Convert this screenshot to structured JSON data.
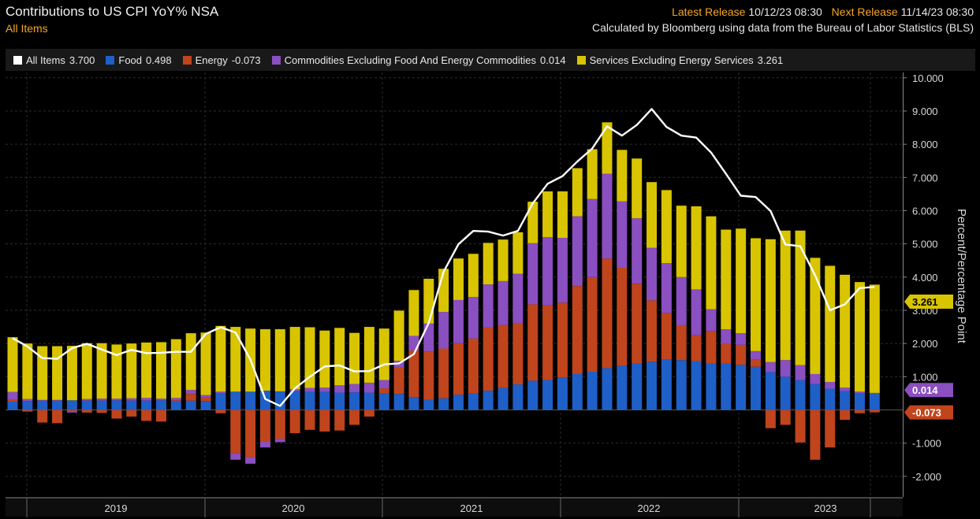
{
  "header": {
    "title": "Contributions to US CPI YoY% NSA",
    "subtitle": "All Items",
    "latest_release_label": "Latest Release",
    "latest_release_value": "10/12/23 08:30",
    "next_release_label": "Next Release",
    "next_release_value": "11/14/23 08:30",
    "source_note": "Calculated by Bloomberg using data from the Bureau of Labor Statistics (BLS)"
  },
  "legend": [
    {
      "label": "All Items",
      "value": "3.700",
      "color": "#ffffff"
    },
    {
      "label": "Food",
      "value": "0.498",
      "color": "#1f5fc8"
    },
    {
      "label": "Energy",
      "value": "-0.073",
      "color": "#c0441c"
    },
    {
      "label": "Commodities Excluding Food And Energy Commodities",
      "value": "0.014",
      "color": "#8a4fc0"
    },
    {
      "label": "Services Excluding Energy Services",
      "value": "3.261",
      "color": "#d9c400"
    }
  ],
  "chart_data": {
    "type": "bar",
    "stacked": true,
    "y_axis_title": "Percent/Percentage Point",
    "ylim": [
      -2.6,
      10.35
    ],
    "y_ticks": [
      "10.000",
      "9.000",
      "8.000",
      "7.000",
      "6.000",
      "5.000",
      "4.000",
      "3.000",
      "2.000",
      "1.000",
      "-1.000",
      "-2.000"
    ],
    "x_tick_labels": [
      "2019",
      "2020",
      "2021",
      "2022",
      "2023"
    ],
    "start_month": "2019-01",
    "end_month": "2023-09",
    "series": [
      {
        "name": "Food",
        "color": "#1f5fc8",
        "values": [
          0.25,
          0.27,
          0.28,
          0.28,
          0.29,
          0.28,
          0.28,
          0.29,
          0.28,
          0.28,
          0.29,
          0.26,
          0.28,
          0.27,
          0.5,
          0.55,
          0.55,
          0.58,
          0.56,
          0.57,
          0.54,
          0.54,
          0.52,
          0.53,
          0.52,
          0.5,
          0.48,
          0.39,
          0.3,
          0.35,
          0.46,
          0.5,
          0.58,
          0.66,
          0.77,
          0.88,
          0.9,
          0.98,
          1.08,
          1.15,
          1.26,
          1.33,
          1.4,
          1.45,
          1.52,
          1.5,
          1.47,
          1.4,
          1.39,
          1.36,
          1.3,
          1.14,
          1.0,
          0.9,
          0.78,
          0.64,
          0.57,
          0.5,
          0.498
        ]
      },
      {
        "name": "Energy",
        "color": "#c0441c",
        "values": [
          0.06,
          -0.05,
          -0.38,
          -0.4,
          -0.05,
          -0.08,
          -0.09,
          -0.26,
          -0.2,
          -0.33,
          -0.35,
          0.03,
          0.2,
          0.1,
          -0.1,
          -1.3,
          -1.42,
          -0.95,
          -0.87,
          -0.7,
          -0.6,
          -0.65,
          -0.62,
          -0.45,
          -0.2,
          0.15,
          0.8,
          1.4,
          1.45,
          1.5,
          1.55,
          1.65,
          1.9,
          1.9,
          1.85,
          2.3,
          2.25,
          2.25,
          2.65,
          2.85,
          3.3,
          2.95,
          2.4,
          1.85,
          1.4,
          1.05,
          0.78,
          0.98,
          0.6,
          0.6,
          0.22,
          -0.55,
          -0.45,
          -0.98,
          -1.5,
          -1.13,
          -0.3,
          -0.1,
          -0.073
        ]
      },
      {
        "name": "Commodities Excluding Food And Energy Commodities",
        "color": "#8a4fc0",
        "values": [
          0.23,
          0.06,
          0.02,
          0.02,
          -0.03,
          0.05,
          0.06,
          0.05,
          0.07,
          0.08,
          0.05,
          0.07,
          0.12,
          0.08,
          0.05,
          -0.2,
          -0.2,
          -0.18,
          -0.1,
          0.05,
          0.12,
          0.13,
          0.22,
          0.25,
          0.3,
          0.25,
          0.2,
          0.44,
          0.85,
          1.1,
          1.3,
          1.25,
          1.3,
          1.32,
          1.48,
          1.84,
          2.05,
          1.95,
          2.1,
          2.35,
          2.55,
          2.0,
          1.97,
          1.58,
          1.5,
          1.45,
          1.38,
          0.65,
          0.44,
          0.35,
          0.25,
          0.3,
          0.5,
          0.45,
          0.3,
          0.2,
          0.1,
          0.05,
          0.014
        ]
      },
      {
        "name": "Services Excluding Energy Services",
        "color": "#d9c400",
        "values": [
          1.65,
          1.67,
          1.62,
          1.62,
          1.64,
          1.68,
          1.67,
          1.63,
          1.65,
          1.67,
          1.7,
          1.77,
          1.71,
          1.88,
          1.98,
          1.95,
          1.9,
          1.85,
          1.87,
          1.88,
          1.83,
          1.72,
          1.73,
          1.54,
          1.68,
          1.55,
          1.51,
          1.38,
          1.35,
          1.3,
          1.25,
          1.3,
          1.25,
          1.25,
          1.25,
          1.25,
          1.38,
          1.4,
          1.45,
          1.5,
          1.55,
          1.55,
          1.8,
          1.98,
          2.2,
          2.15,
          2.5,
          2.8,
          3.0,
          3.15,
          3.4,
          3.7,
          3.9,
          4.05,
          3.5,
          3.5,
          3.4,
          3.3,
          3.261
        ]
      },
      {
        "name": "All Items",
        "color": "#ffffff",
        "type": "line",
        "values": [
          2.16,
          1.91,
          1.56,
          1.54,
          1.86,
          1.99,
          1.82,
          1.65,
          1.81,
          1.71,
          1.72,
          1.75,
          1.75,
          2.29,
          2.49,
          2.33,
          1.52,
          0.33,
          0.12,
          0.65,
          1.0,
          1.31,
          1.34,
          1.16,
          1.17,
          1.37,
          1.4,
          1.68,
          2.62,
          4.16,
          4.99,
          5.39,
          5.37,
          5.25,
          5.39,
          6.22,
          6.81,
          7.04,
          7.48,
          7.87,
          8.54,
          8.26,
          8.58,
          9.06,
          8.52,
          8.26,
          8.2,
          7.75,
          7.11,
          6.45,
          6.41,
          5.99,
          4.98,
          4.93,
          4.05,
          3.0,
          3.18,
          3.67,
          3.7
        ]
      }
    ],
    "axis_flags": [
      {
        "text": "3.261",
        "color": "#d9c400",
        "y": 3.261,
        "text_color": "#000000"
      },
      {
        "text": "0.014",
        "color": "#8a4fc0",
        "y": 0.6,
        "text_color": "#ffffff"
      },
      {
        "text": "-0.073",
        "color": "#c0441c",
        "y": -0.073,
        "text_color": "#ffffff"
      }
    ]
  }
}
